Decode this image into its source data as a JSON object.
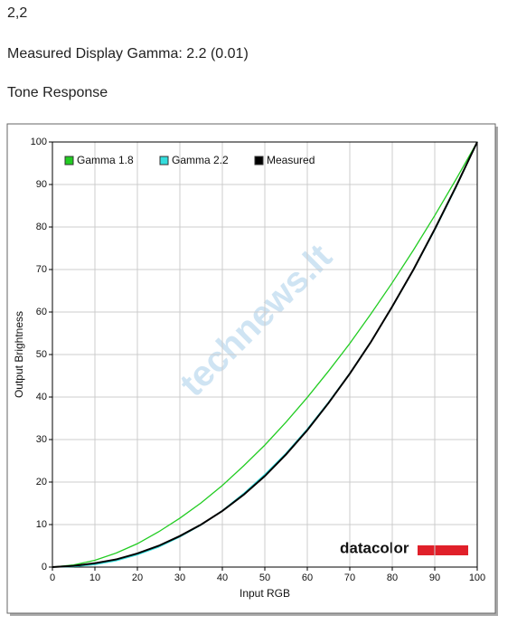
{
  "header": {
    "gamma_value": "2,2",
    "measured": "Measured Display Gamma: 2.2 (0.01)",
    "section": "Tone Response"
  },
  "chart_data": {
    "type": "line",
    "xlabel": "Input RGB",
    "ylabel": "Output Brightness",
    "x": [
      0,
      5,
      10,
      15,
      20,
      25,
      30,
      35,
      40,
      45,
      50,
      55,
      60,
      65,
      70,
      75,
      80,
      85,
      90,
      95,
      100
    ],
    "series": [
      {
        "name": "Gamma 1.8",
        "color": "#22cc22",
        "values": [
          0,
          0.5,
          1.6,
          3.3,
          5.5,
          8.3,
          11.5,
          15.1,
          19.2,
          23.8,
          28.7,
          34.1,
          39.9,
          46.1,
          52.6,
          59.6,
          66.9,
          74.6,
          82.7,
          91.2,
          100
        ]
      },
      {
        "name": "Gamma 2.2",
        "color": "#33dddd",
        "values": [
          0,
          0.1,
          0.6,
          1.5,
          2.9,
          4.7,
          7.1,
          9.9,
          13.3,
          17.3,
          21.8,
          26.8,
          32.5,
          38.8,
          45.6,
          53.1,
          61.2,
          69.9,
          79.3,
          89.3,
          100
        ]
      },
      {
        "name": "Measured",
        "color": "#000000",
        "values": [
          0,
          0.3,
          0.9,
          1.8,
          3.2,
          5.0,
          7.3,
          10.0,
          13.2,
          17.0,
          21.4,
          26.5,
          32.2,
          38.6,
          45.5,
          53.0,
          61.3,
          70.0,
          79.5,
          89.5,
          100
        ]
      }
    ],
    "xlim": [
      0,
      100
    ],
    "ylim": [
      0,
      100
    ],
    "xticks": [
      0,
      10,
      20,
      30,
      40,
      50,
      60,
      70,
      80,
      90,
      100
    ],
    "yticks": [
      0,
      10,
      20,
      30,
      40,
      50,
      60,
      70,
      80,
      90,
      100
    ],
    "grid": true,
    "legend": "top-left",
    "logo": "datacolor",
    "watermark": "technews.lt"
  }
}
